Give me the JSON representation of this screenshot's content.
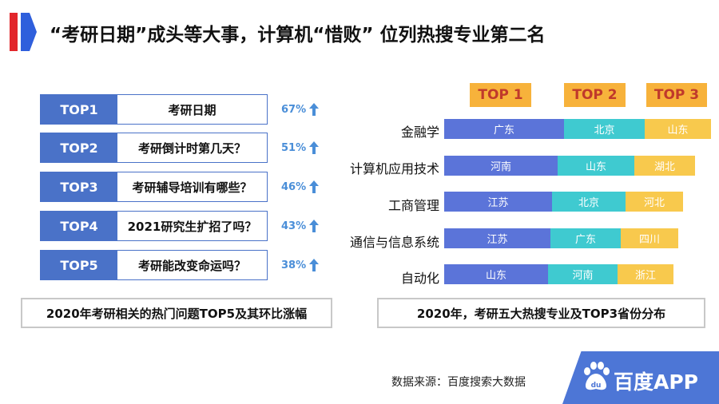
{
  "title": "“考研日期”成头等大事，计算机“惜败” 位列热搜专业第二名",
  "left_panel": {
    "items": [
      {
        "rank": "TOP1",
        "question": "考研日期",
        "pct": "67%"
      },
      {
        "rank": "TOP2",
        "question": "考研倒计时第几天？",
        "pct": "51%"
      },
      {
        "rank": "TOP3",
        "question": "考研辅导培训有哪些？",
        "pct": "46%"
      },
      {
        "rank": "TOP4",
        "question": "2021研究生扩招了吗？",
        "pct": "43%"
      },
      {
        "rank": "TOP5",
        "question": "考研能改变命运吗？",
        "pct": "38%"
      }
    ],
    "caption": "2020年考研相关的热门问题TOP5及其环比涨幅"
  },
  "chart_data": {
    "type": "bar",
    "orientation": "horizontal-stacked",
    "legend": [
      "TOP 1",
      "TOP 2",
      "TOP 3"
    ],
    "categories": [
      "金融学",
      "计算机应用技术",
      "工商管理",
      "通信与信息系统",
      "自动化"
    ],
    "series": [
      {
        "name": "TOP 1",
        "color": "#5b74d9",
        "labels": [
          "广东",
          "河南",
          "江苏",
          "江苏",
          "山东"
        ],
        "values": [
          150,
          142,
          135,
          133,
          130
        ]
      },
      {
        "name": "TOP 2",
        "color": "#3fcad0",
        "labels": [
          "北京",
          "山东",
          "北京",
          "广东",
          "河南"
        ],
        "values": [
          101,
          96,
          92,
          88,
          87
        ]
      },
      {
        "name": "TOP 3",
        "color": "#f8c94d",
        "labels": [
          "山东",
          "湖北",
          "河北",
          "四川",
          "浙江"
        ],
        "values": [
          83,
          76,
          72,
          72,
          70
        ]
      }
    ],
    "caption": "2020年，考研五大热搜专业及TOP3省份分布"
  },
  "source": "数据来源：百度搜索大数据",
  "logo": {
    "text": "百度APP",
    "icon": "baidu-paw-icon"
  },
  "colors": {
    "accent_blue": "#4a72c8",
    "pct_blue": "#4a8ed8",
    "tag_orange": "#f7b23b",
    "tag_text": "#c0392b"
  }
}
